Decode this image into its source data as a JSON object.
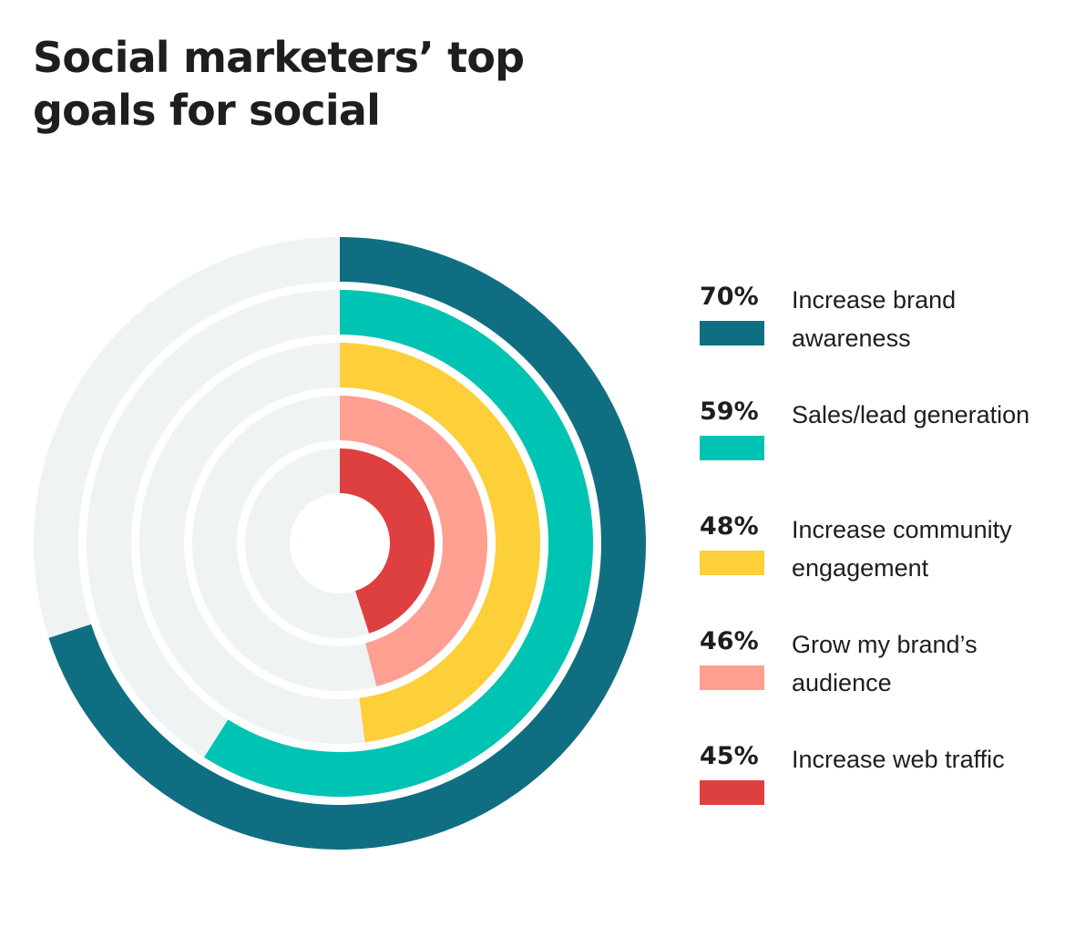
{
  "title": "Social marketers’ top goals for social",
  "chart_data": {
    "type": "radial-bar",
    "title": "Social marketers’ top goals for social",
    "series": [
      {
        "label": "Increase brand awareness",
        "value": 70,
        "display": "70%",
        "color": "#106e82"
      },
      {
        "label": "Sales/lead generation",
        "value": 59,
        "display": "59%",
        "color": "#00c4b3"
      },
      {
        "label": "Increase community engagement",
        "value": 48,
        "display": "48%",
        "color": "#fdcf38"
      },
      {
        "label": "Grow my brand’s audience",
        "value": 46,
        "display": "46%",
        "color": "#ff9f91"
      },
      {
        "label": "Increase web traffic",
        "value": 45,
        "display": "45%",
        "color": "#de3f3f"
      }
    ],
    "max_value": 100,
    "track_color": "#eff3f4",
    "legend_position": "right"
  }
}
